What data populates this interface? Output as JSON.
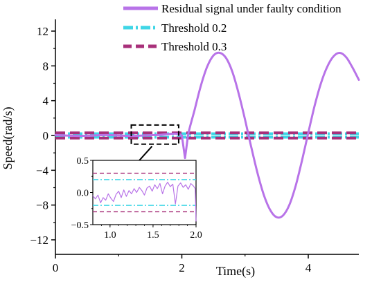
{
  "chart_data": {
    "type": "line",
    "title": "",
    "xlabel": "Time(s)",
    "ylabel": "Speed(rad/s)",
    "xlim": [
      0,
      4.8
    ],
    "ylim": [
      -12,
      12
    ],
    "xticks": [
      0,
      2,
      4
    ],
    "xtick_labels": [
      "0",
      "2",
      "4"
    ],
    "yticks": [
      -12,
      -8,
      -4,
      0,
      4,
      8,
      12
    ],
    "ytick_labels": [
      "−12",
      "−8",
      "−4",
      "0",
      "4",
      "8",
      "12"
    ],
    "legend_position": "top-right",
    "series": [
      {
        "name": "Residual signal under faulty condition",
        "color": "#b873e8",
        "style": "solid",
        "x": [
          0,
          0.4,
          0.8,
          1.2,
          1.6,
          2.0,
          2.05,
          2.1,
          2.2,
          2.3,
          2.4,
          2.5,
          2.6,
          2.7,
          2.8,
          2.9,
          3.0,
          3.1,
          3.2,
          3.3,
          3.4,
          3.5,
          3.6,
          3.7,
          3.8,
          3.9,
          4.0,
          4.1,
          4.2,
          4.3,
          4.4,
          4.5,
          4.6,
          4.7,
          4.8
        ],
        "y": [
          0.05,
          -0.05,
          0.05,
          -0.05,
          0.05,
          0.0,
          -2.6,
          0.1,
          2.9,
          5.7,
          7.9,
          9.2,
          9.5,
          8.9,
          7.3,
          4.8,
          1.8,
          -1.4,
          -4.4,
          -6.9,
          -8.6,
          -9.4,
          -9.2,
          -8.0,
          -5.8,
          -2.9,
          0.3,
          3.4,
          6.0,
          7.9,
          9.1,
          9.5,
          9.0,
          7.8,
          6.4
        ]
      },
      {
        "name": "Threshold 0.2",
        "color": "#3fd6e6",
        "style": "dash-dot",
        "x": [
          0,
          4.8
        ],
        "y": [
          0.2,
          0.2
        ],
        "y2": [
          -0.2,
          -0.2
        ]
      },
      {
        "name": "Threshold 0.3",
        "color": "#a8307a",
        "style": "dash",
        "x": [
          0,
          4.8
        ],
        "y": [
          0.3,
          0.3
        ],
        "y2": [
          -0.3,
          -0.3
        ]
      }
    ],
    "inset": {
      "xlim": [
        0.8,
        2.0
      ],
      "ylim": [
        -0.5,
        0.5
      ],
      "xticks": [
        1.0,
        1.5,
        2.0
      ],
      "xtick_labels": [
        "1.0",
        "1.5",
        "2.0"
      ],
      "yticks": [
        -0.5,
        0.0,
        0.5
      ],
      "ytick_labels": [
        "−0.5",
        "0.0",
        "0.5"
      ],
      "zoom_box_x": [
        1.2,
        1.95
      ],
      "zoom_box_y": [
        -1.0,
        1.2
      ],
      "residual_x": [
        0.8,
        0.83,
        0.86,
        0.89,
        0.92,
        0.95,
        0.98,
        1.01,
        1.04,
        1.07,
        1.1,
        1.13,
        1.16,
        1.19,
        1.22,
        1.25,
        1.28,
        1.31,
        1.34,
        1.37,
        1.4,
        1.43,
        1.46,
        1.49,
        1.52,
        1.55,
        1.58,
        1.61,
        1.64,
        1.67,
        1.7,
        1.73,
        1.76,
        1.79,
        1.82,
        1.85,
        1.88,
        1.91,
        1.94,
        1.97,
        1.99,
        2.0
      ],
      "residual_y": [
        -0.05,
        -0.1,
        -0.04,
        -0.16,
        -0.08,
        -0.12,
        -0.02,
        -0.09,
        -0.14,
        -0.03,
        0.02,
        -0.08,
        0.04,
        -0.06,
        0.03,
        -0.02,
        0.06,
        0.0,
        0.08,
        0.03,
        -0.04,
        0.07,
        0.1,
        0.02,
        0.12,
        0.06,
        0.14,
        -0.02,
        0.1,
        0.16,
        0.09,
        0.13,
        -0.18,
        0.1,
        0.15,
        0.08,
        0.12,
        0.05,
        0.14,
        0.1,
        0.06,
        -0.45
      ]
    }
  }
}
